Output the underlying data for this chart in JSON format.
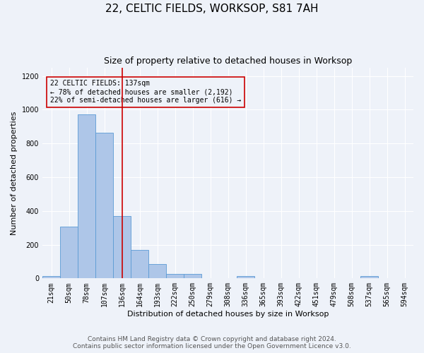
{
  "title": "22, CELTIC FIELDS, WORKSOP, S81 7AH",
  "subtitle": "Size of property relative to detached houses in Worksop",
  "xlabel": "Distribution of detached houses by size in Worksop",
  "ylabel": "Number of detached properties",
  "bins": [
    "21sqm",
    "50sqm",
    "78sqm",
    "107sqm",
    "136sqm",
    "164sqm",
    "193sqm",
    "222sqm",
    "250sqm",
    "279sqm",
    "308sqm",
    "336sqm",
    "365sqm",
    "393sqm",
    "422sqm",
    "451sqm",
    "479sqm",
    "508sqm",
    "537sqm",
    "565sqm",
    "594sqm"
  ],
  "bar_heights": [
    12,
    305,
    970,
    865,
    370,
    170,
    85,
    25,
    25,
    0,
    0,
    12,
    0,
    0,
    0,
    0,
    0,
    0,
    12,
    0,
    0
  ],
  "bar_color": "#aec6e8",
  "bar_edgecolor": "#5b9bd5",
  "annotation_line1": "22 CELTIC FIELDS: 137sqm",
  "annotation_line2": "← 78% of detached houses are smaller (2,192)",
  "annotation_line3": "22% of semi-detached houses are larger (616) →",
  "vline_color": "#cc0000",
  "annotation_box_edgecolor": "#cc0000",
  "ylim": [
    0,
    1250
  ],
  "yticks": [
    0,
    200,
    400,
    600,
    800,
    1000,
    1200
  ],
  "footer_line1": "Contains HM Land Registry data © Crown copyright and database right 2024.",
  "footer_line2": "Contains public sector information licensed under the Open Government Licence v3.0.",
  "background_color": "#eef2f9",
  "grid_color": "#ffffff",
  "title_fontsize": 11,
  "subtitle_fontsize": 9,
  "axis_label_fontsize": 8,
  "tick_fontsize": 7,
  "annotation_fontsize": 7,
  "footer_fontsize": 6.5
}
